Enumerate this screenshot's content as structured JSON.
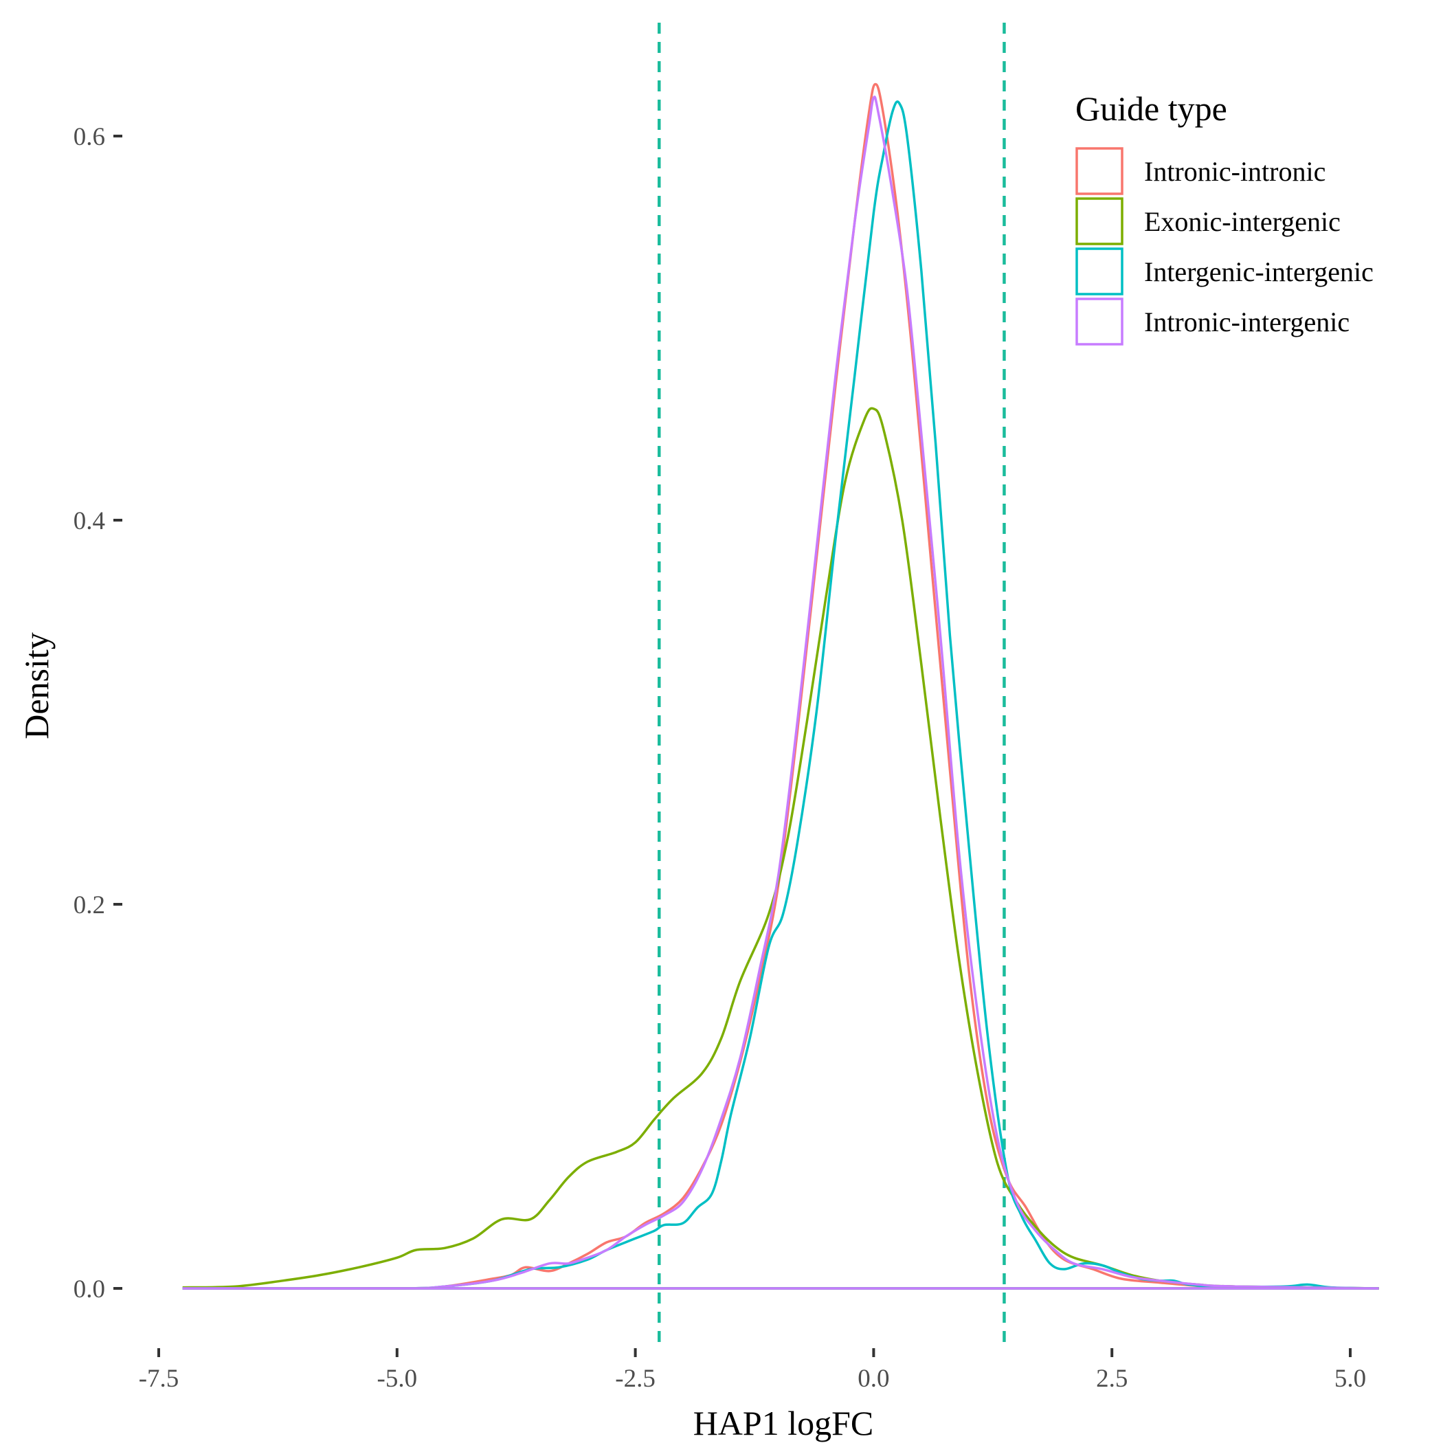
{
  "chart_data": {
    "type": "line",
    "title": "",
    "xlabel": "HAP1 logFC",
    "ylabel": "Density",
    "xlim": [
      -7.5,
      5.3
    ],
    "ylim": [
      0,
      0.64
    ],
    "x_ticks": [
      -7.5,
      -5.0,
      -2.5,
      0.0,
      2.5,
      5.0
    ],
    "x_tick_labels": [
      "-7.5",
      "-5.0",
      "-2.5",
      "0.0",
      "2.5",
      "5.0"
    ],
    "y_ticks": [
      0.0,
      0.2,
      0.4,
      0.6
    ],
    "y_tick_labels": [
      "0.0",
      "0.2",
      "0.4",
      "0.6"
    ],
    "grid": false,
    "legend_title": "Guide type",
    "legend_position": "top-right",
    "vlines": [
      {
        "x": -2.25,
        "color": "#1abc9c",
        "style": "dashed"
      },
      {
        "x": 1.37,
        "color": "#1abc9c",
        "style": "dashed"
      }
    ],
    "series": [
      {
        "name": "Intronic-intronic",
        "color": "#f8766d",
        "points": [
          [
            -7.25,
            0
          ],
          [
            -5.0,
            0
          ],
          [
            -4.5,
            0.001
          ],
          [
            -4.0,
            0.005
          ],
          [
            -3.8,
            0.007
          ],
          [
            -3.65,
            0.011
          ],
          [
            -3.4,
            0.009
          ],
          [
            -3.2,
            0.013
          ],
          [
            -3.0,
            0.018
          ],
          [
            -2.8,
            0.024
          ],
          [
            -2.6,
            0.027
          ],
          [
            -2.4,
            0.034
          ],
          [
            -2.2,
            0.039
          ],
          [
            -2.0,
            0.047
          ],
          [
            -1.8,
            0.063
          ],
          [
            -1.6,
            0.085
          ],
          [
            -1.4,
            0.118
          ],
          [
            -1.2,
            0.16
          ],
          [
            -1.0,
            0.21
          ],
          [
            -0.8,
            0.29
          ],
          [
            -0.6,
            0.38
          ],
          [
            -0.4,
            0.47
          ],
          [
            -0.2,
            0.555
          ],
          [
            -0.05,
            0.612
          ],
          [
            0.02,
            0.627
          ],
          [
            0.1,
            0.612
          ],
          [
            0.25,
            0.56
          ],
          [
            0.4,
            0.49
          ],
          [
            0.6,
            0.38
          ],
          [
            0.8,
            0.27
          ],
          [
            1.0,
            0.165
          ],
          [
            1.2,
            0.095
          ],
          [
            1.4,
            0.058
          ],
          [
            1.6,
            0.042
          ],
          [
            1.8,
            0.025
          ],
          [
            2.0,
            0.015
          ],
          [
            2.3,
            0.01
          ],
          [
            2.6,
            0.005
          ],
          [
            3.0,
            0.003
          ],
          [
            3.5,
            0.001
          ],
          [
            4.0,
            0.0005
          ],
          [
            5.3,
            0
          ]
        ]
      },
      {
        "name": "Exonic-intergenic",
        "color": "#7cae00",
        "points": [
          [
            -7.25,
            0.0005
          ],
          [
            -6.7,
            0.001
          ],
          [
            -6.2,
            0.004
          ],
          [
            -5.8,
            0.007
          ],
          [
            -5.4,
            0.011
          ],
          [
            -5.0,
            0.016
          ],
          [
            -4.8,
            0.02
          ],
          [
            -4.5,
            0.021
          ],
          [
            -4.2,
            0.026
          ],
          [
            -3.9,
            0.036
          ],
          [
            -3.6,
            0.036
          ],
          [
            -3.4,
            0.046
          ],
          [
            -3.2,
            0.058
          ],
          [
            -3.0,
            0.066
          ],
          [
            -2.7,
            0.071
          ],
          [
            -2.5,
            0.076
          ],
          [
            -2.3,
            0.088
          ],
          [
            -2.1,
            0.099
          ],
          [
            -1.8,
            0.112
          ],
          [
            -1.6,
            0.13
          ],
          [
            -1.4,
            0.16
          ],
          [
            -1.1,
            0.195
          ],
          [
            -0.9,
            0.235
          ],
          [
            -0.7,
            0.295
          ],
          [
            -0.5,
            0.36
          ],
          [
            -0.3,
            0.42
          ],
          [
            -0.1,
            0.452
          ],
          [
            0.0,
            0.458
          ],
          [
            0.1,
            0.448
          ],
          [
            0.3,
            0.4
          ],
          [
            0.5,
            0.325
          ],
          [
            0.7,
            0.245
          ],
          [
            0.9,
            0.17
          ],
          [
            1.1,
            0.11
          ],
          [
            1.3,
            0.065
          ],
          [
            1.5,
            0.045
          ],
          [
            1.7,
            0.032
          ],
          [
            1.9,
            0.022
          ],
          [
            2.1,
            0.016
          ],
          [
            2.4,
            0.012
          ],
          [
            2.7,
            0.007
          ],
          [
            3.0,
            0.004
          ],
          [
            3.4,
            0.002
          ],
          [
            3.8,
            0.001
          ],
          [
            5.3,
            0
          ]
        ]
      },
      {
        "name": "Intergenic-intergenic",
        "color": "#00bfc4",
        "points": [
          [
            -7.25,
            0
          ],
          [
            -5.0,
            0
          ],
          [
            -4.5,
            0.001
          ],
          [
            -4.0,
            0.004
          ],
          [
            -3.6,
            0.01
          ],
          [
            -3.3,
            0.011
          ],
          [
            -3.0,
            0.015
          ],
          [
            -2.8,
            0.02
          ],
          [
            -2.5,
            0.026
          ],
          [
            -2.3,
            0.03
          ],
          [
            -2.2,
            0.033
          ],
          [
            -2.0,
            0.034
          ],
          [
            -1.85,
            0.042
          ],
          [
            -1.7,
            0.049
          ],
          [
            -1.6,
            0.066
          ],
          [
            -1.5,
            0.09
          ],
          [
            -1.3,
            0.13
          ],
          [
            -1.1,
            0.178
          ],
          [
            -0.95,
            0.195
          ],
          [
            -0.8,
            0.232
          ],
          [
            -0.6,
            0.3
          ],
          [
            -0.4,
            0.39
          ],
          [
            -0.2,
            0.475
          ],
          [
            0.0,
            0.56
          ],
          [
            0.1,
            0.59
          ],
          [
            0.2,
            0.613
          ],
          [
            0.27,
            0.617
          ],
          [
            0.35,
            0.6
          ],
          [
            0.5,
            0.53
          ],
          [
            0.65,
            0.44
          ],
          [
            0.8,
            0.34
          ],
          [
            1.0,
            0.23
          ],
          [
            1.2,
            0.13
          ],
          [
            1.4,
            0.06
          ],
          [
            1.55,
            0.038
          ],
          [
            1.7,
            0.025
          ],
          [
            1.85,
            0.013
          ],
          [
            2.0,
            0.01
          ],
          [
            2.2,
            0.013
          ],
          [
            2.4,
            0.012
          ],
          [
            2.6,
            0.008
          ],
          [
            2.8,
            0.005
          ],
          [
            3.0,
            0.004
          ],
          [
            3.15,
            0.004
          ],
          [
            3.3,
            0.002
          ],
          [
            3.6,
            0.001
          ],
          [
            4.3,
            0.001
          ],
          [
            4.55,
            0.002
          ],
          [
            4.8,
            0.0005
          ],
          [
            5.3,
            0
          ]
        ]
      },
      {
        "name": "Intronic-intergenic",
        "color": "#c77cff",
        "points": [
          [
            -7.25,
            0
          ],
          [
            -5.0,
            0
          ],
          [
            -4.5,
            0.001
          ],
          [
            -4.0,
            0.004
          ],
          [
            -3.7,
            0.008
          ],
          [
            -3.4,
            0.013
          ],
          [
            -3.2,
            0.013
          ],
          [
            -3.0,
            0.016
          ],
          [
            -2.8,
            0.02
          ],
          [
            -2.6,
            0.027
          ],
          [
            -2.4,
            0.033
          ],
          [
            -2.2,
            0.038
          ],
          [
            -2.0,
            0.045
          ],
          [
            -1.8,
            0.062
          ],
          [
            -1.6,
            0.088
          ],
          [
            -1.4,
            0.12
          ],
          [
            -1.2,
            0.165
          ],
          [
            -1.0,
            0.215
          ],
          [
            -0.8,
            0.295
          ],
          [
            -0.6,
            0.385
          ],
          [
            -0.4,
            0.475
          ],
          [
            -0.2,
            0.555
          ],
          [
            -0.05,
            0.605
          ],
          [
            0.0,
            0.62
          ],
          [
            0.05,
            0.612
          ],
          [
            0.2,
            0.57
          ],
          [
            0.35,
            0.52
          ],
          [
            0.5,
            0.445
          ],
          [
            0.7,
            0.34
          ],
          [
            0.9,
            0.225
          ],
          [
            1.1,
            0.14
          ],
          [
            1.3,
            0.078
          ],
          [
            1.5,
            0.045
          ],
          [
            1.7,
            0.03
          ],
          [
            1.9,
            0.02
          ],
          [
            2.1,
            0.013
          ],
          [
            2.4,
            0.01
          ],
          [
            2.7,
            0.006
          ],
          [
            3.0,
            0.004
          ],
          [
            3.4,
            0.002
          ],
          [
            3.8,
            0.001
          ],
          [
            5.3,
            0
          ]
        ]
      }
    ]
  }
}
